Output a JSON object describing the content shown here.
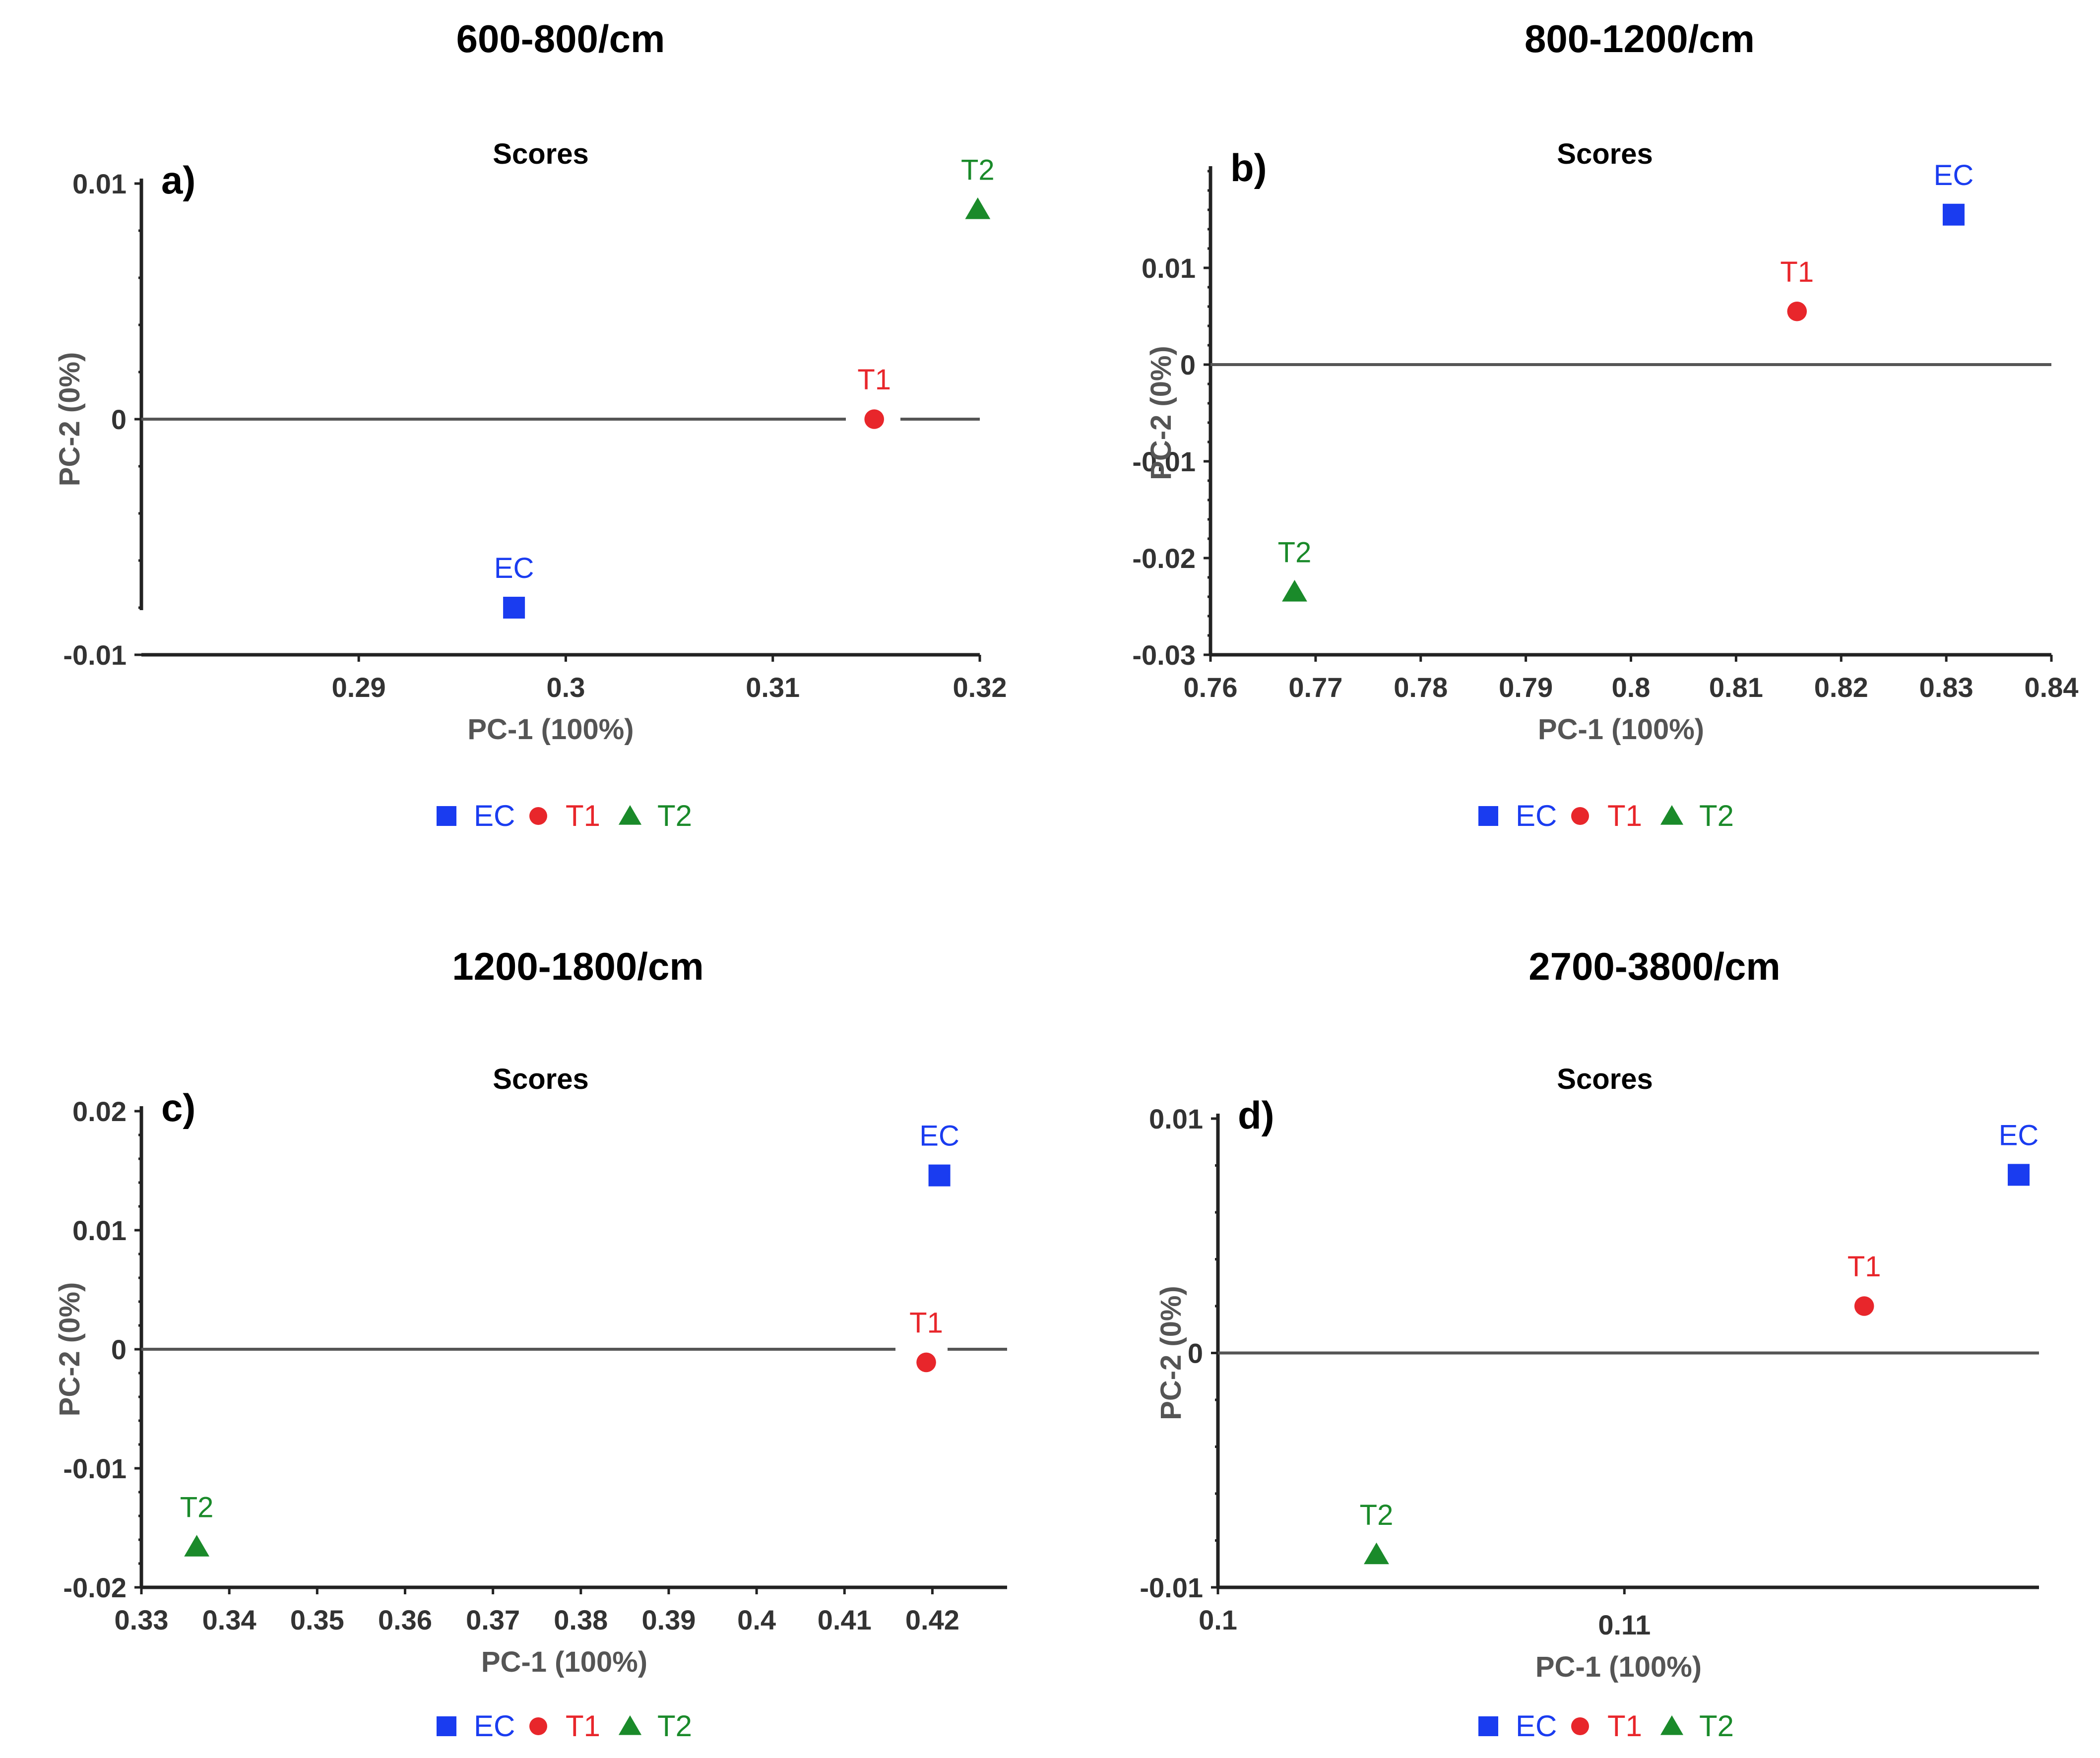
{
  "series_colors": {
    "EC": "#1a3cf0",
    "T1": "#e8262b",
    "T2": "#1a8a2a"
  },
  "chart_data": [
    {
      "type": "scatter",
      "panel": "a)",
      "title": "600-800/cm",
      "subtitle": "Scores",
      "xlabel": "PC-1 (100%)",
      "ylabel": "PC-2 (0%)",
      "xlim": [
        0.2795,
        0.32
      ],
      "ylim": [
        -0.01,
        0.01
      ],
      "xticks": [
        0.29,
        0.3,
        0.31,
        0.32
      ],
      "xtick_labels": [
        "0.29",
        "0.3",
        "0.31",
        "0.32"
      ],
      "yticks": [
        -0.01,
        0,
        0.01
      ],
      "ytick_labels": [
        "-0.01",
        "0",
        "0.01"
      ],
      "legend": [
        "EC",
        "T1",
        "T2"
      ],
      "points": [
        {
          "name": "EC",
          "label": "EC",
          "x": 0.2975,
          "y": -0.008,
          "marker": "square"
        },
        {
          "name": "T1",
          "label": "T1",
          "x": 0.3149,
          "y": 0.0,
          "marker": "circle"
        },
        {
          "name": "T2",
          "label": "T2",
          "x": 0.3199,
          "y": 0.0089,
          "marker": "triangle"
        }
      ]
    },
    {
      "type": "scatter",
      "panel": "b)",
      "title": "800-1200/cm",
      "subtitle": "Scores",
      "xlabel": "PC-1 (100%)",
      "ylabel": "PC-2 (0%)",
      "xlim": [
        0.76,
        0.84
      ],
      "ylim": [
        -0.03,
        0.02
      ],
      "xticks": [
        0.76,
        0.77,
        0.78,
        0.79,
        0.8,
        0.81,
        0.82,
        0.83,
        0.84
      ],
      "xtick_labels": [
        "0.76",
        "0.77",
        "0.78",
        "0.79",
        "0.8",
        "0.81",
        "0.82",
        "0.83",
        "0.84"
      ],
      "yticks": [
        -0.03,
        -0.02,
        -0.01,
        0,
        0.01
      ],
      "ytick_labels": [
        "-0.03",
        "-0.02",
        "-0.01",
        "0",
        "0.01"
      ],
      "legend": [
        "EC",
        "T1",
        "T2"
      ],
      "points": [
        {
          "name": "EC",
          "label": "EC",
          "x": 0.8307,
          "y": 0.0155,
          "marker": "square"
        },
        {
          "name": "T1",
          "label": "T1",
          "x": 0.8158,
          "y": 0.0055,
          "marker": "circle"
        },
        {
          "name": "T2",
          "label": "T2",
          "x": 0.768,
          "y": -0.0235,
          "marker": "triangle"
        }
      ]
    },
    {
      "type": "scatter",
      "panel": "c)",
      "title": "1200-1800/cm",
      "subtitle": "Scores",
      "xlabel": "PC-1 (100%)",
      "ylabel": "PC-2 (0%)",
      "xlim": [
        0.33,
        0.4285
      ],
      "ylim": [
        -0.02,
        0.02
      ],
      "xticks": [
        0.33,
        0.34,
        0.35,
        0.36,
        0.37,
        0.38,
        0.39,
        0.4,
        0.41,
        0.42
      ],
      "xtick_labels": [
        "0.33",
        "0.34",
        "0.35",
        "0.36",
        "0.37",
        "0.38",
        "0.39",
        "0.4",
        "0.41",
        "0.42"
      ],
      "yticks": [
        -0.02,
        -0.01,
        0,
        0.01,
        0.02
      ],
      "ytick_labels": [
        "-0.02",
        "-0.01",
        "0",
        "0.01",
        "0.02"
      ],
      "legend": [
        "EC",
        "T1",
        "T2"
      ],
      "points": [
        {
          "name": "EC",
          "label": "EC",
          "x": 0.4208,
          "y": 0.0146,
          "marker": "square"
        },
        {
          "name": "T1",
          "label": "T1",
          "x": 0.4193,
          "y": -0.0011,
          "marker": "circle"
        },
        {
          "name": "T2",
          "label": "T2",
          "x": 0.3363,
          "y": -0.0166,
          "marker": "triangle"
        }
      ]
    },
    {
      "type": "scatter",
      "panel": "d)",
      "title": "2700-3800/cm",
      "subtitle": "Scores",
      "xlabel": "PC-1 (100%)",
      "ylabel": "PC-2 (0%)",
      "xlim": [
        0.1,
        0.1202
      ],
      "ylim": [
        -0.01,
        0.01
      ],
      "xticks": [
        0.1,
        0.11
      ],
      "xtick_labels": [
        "0.1",
        "0.11"
      ],
      "yticks": [
        -0.01,
        0,
        0.01
      ],
      "ytick_labels": [
        "-0.01",
        "0",
        "0.01"
      ],
      "legend": [
        "EC",
        "T1",
        "T2"
      ],
      "points": [
        {
          "name": "EC",
          "label": "EC",
          "x": 0.1197,
          "y": 0.0076,
          "marker": "square"
        },
        {
          "name": "T1",
          "label": "T1",
          "x": 0.1159,
          "y": 0.002,
          "marker": "circle"
        },
        {
          "name": "T2",
          "label": "T2",
          "x": 0.1039,
          "y": -0.0086,
          "marker": "triangle"
        }
      ]
    }
  ]
}
